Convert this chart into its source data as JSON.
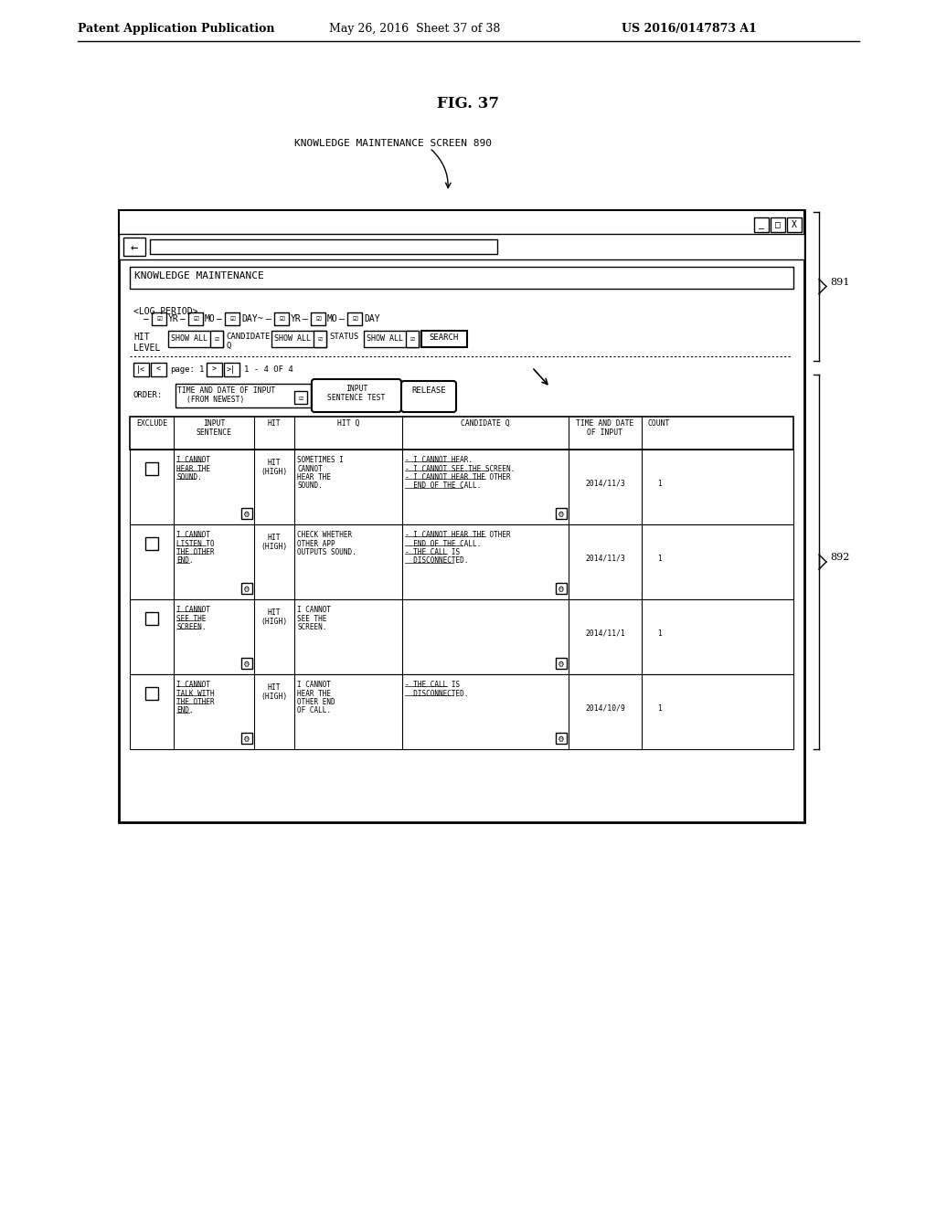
{
  "title": "FIG. 37",
  "header_left": "Patent Application Publication",
  "header_mid": "May 26, 2016  Sheet 37 of 38",
  "header_right": "US 2016/0147873 A1",
  "screen_label": "KNOWLEDGE MAINTENANCE SCREEN 890",
  "screen_title": "KNOWLEDGE MAINTENANCE",
  "log_period_label": "<LOG PERIOD>",
  "brace_label_891": "891",
  "brace_label_892": "892",
  "table_headers": [
    "EXCLUDE",
    "INPUT\nSENTENCE",
    "HIT",
    "HIT Q",
    "CANDIDATE Q",
    "TIME AND DATE\nOF INPUT",
    "COUNT"
  ],
  "rows": [
    {
      "exclude": "",
      "input_sentence": "I CANNOT\nHEAR THE\nSOUND.",
      "hit": "HIT\n(HIGH)",
      "hit_q": "SOMETIMES I\nCANNOT\nHEAR THE\nSOUND.",
      "candidate_q": "- I CANNOT HEAR.\n- I CANNOT SEE THE SCREEN.\n- I CANNOT HEAR THE OTHER\n  END OF THE CALL.",
      "date": "2014/11/3",
      "count": "1"
    },
    {
      "exclude": "",
      "input_sentence": "I CANNOT\nLISTEN TO\nTHE OTHER\nEND.",
      "hit": "HIT\n(HIGH)",
      "hit_q": "CHECK WHETHER\nOTHER APP\nOUTPUTS SOUND.",
      "candidate_q": "- I CANNOT HEAR THE OTHER\n  END OF THE CALL.\n- THE CALL IS\n  DISCONNECTED.",
      "date": "2014/11/3",
      "count": "1"
    },
    {
      "exclude": "",
      "input_sentence": "I CANNOT\nSEE THE\nSCREEN.",
      "hit": "HIT\n(HIGH)",
      "hit_q": "I CANNOT\nSEE THE\nSCREEN.",
      "candidate_q": "",
      "date": "2014/11/1",
      "count": "1"
    },
    {
      "exclude": "",
      "input_sentence": "I CANNOT\nTALK WITH\nTHE OTHER\nEND.",
      "hit": "HIT\n(HIGH)",
      "hit_q": "I CANNOT\nHEAR THE\nOTHER END\nOF CALL.",
      "candidate_q": "- THE CALL IS\n  DISCONNECTED.",
      "date": "2014/10/9",
      "count": "1"
    }
  ]
}
